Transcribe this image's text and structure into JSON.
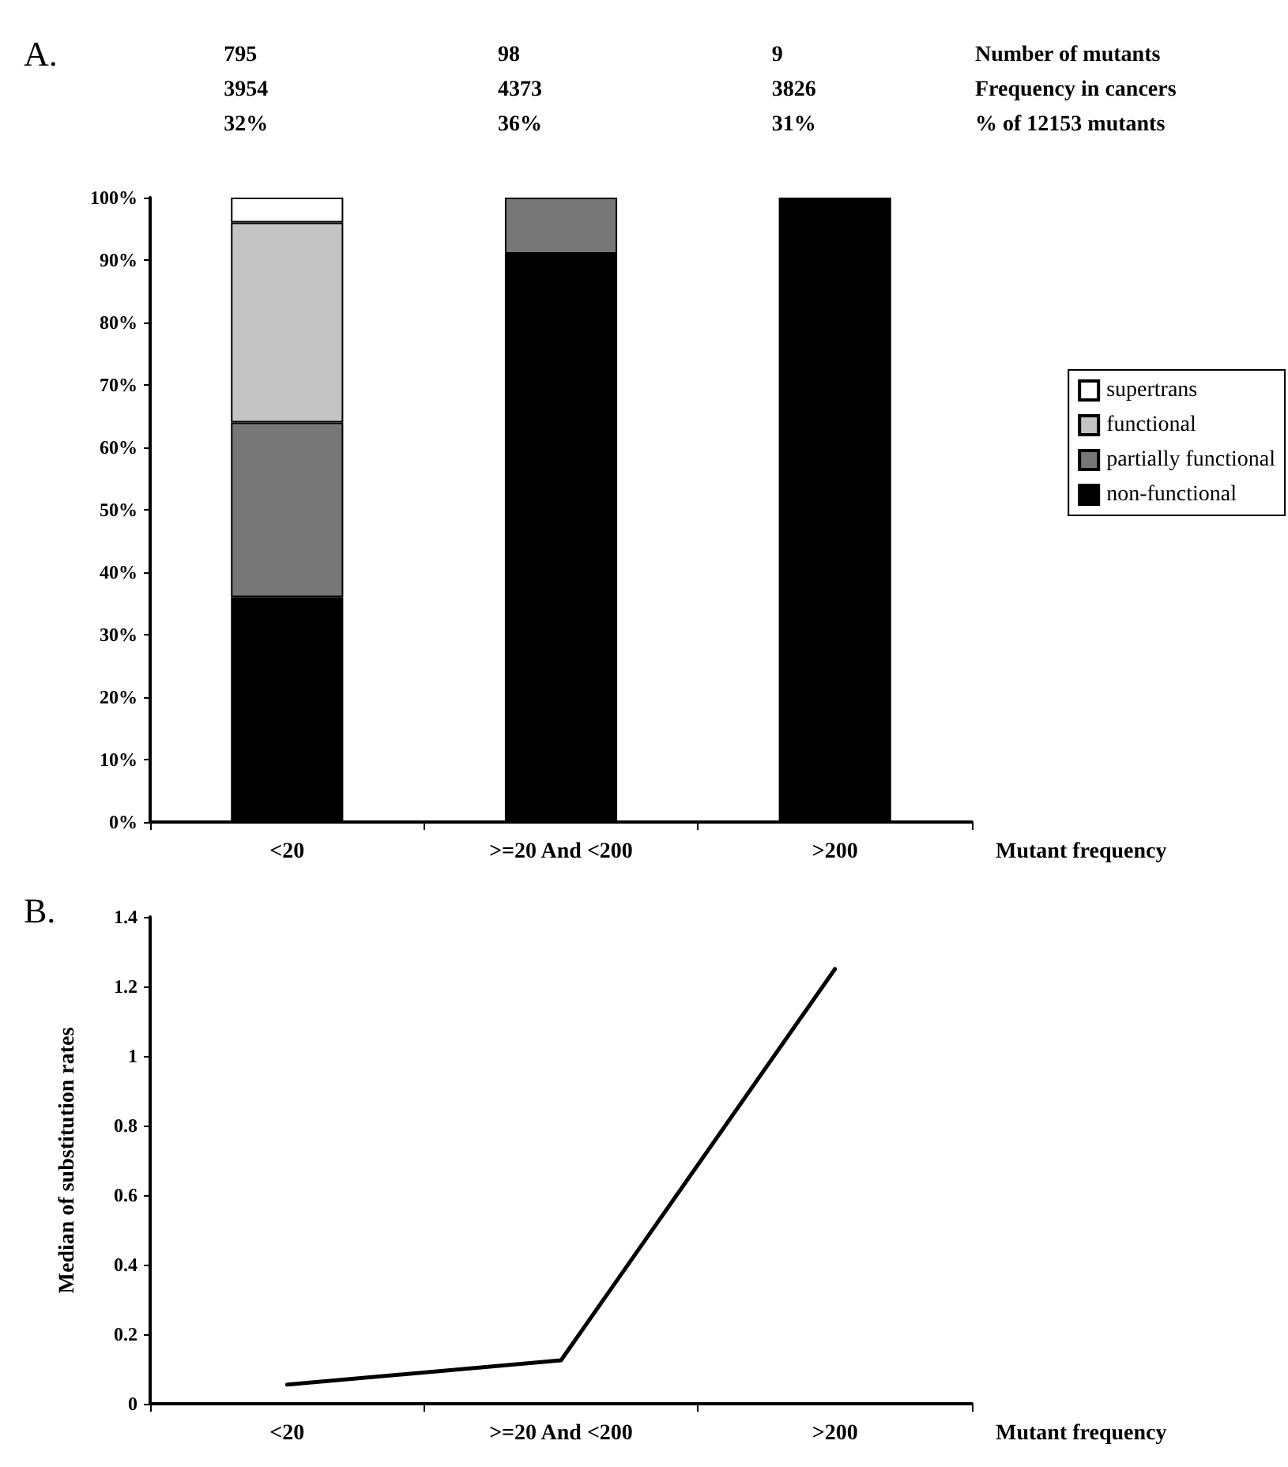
{
  "chart_data": [
    {
      "type": "bar",
      "title": "A.",
      "xlabel": "Mutant frequency",
      "categories": [
        "<20",
        ">=20 And <200",
        ">200"
      ],
      "stacked": true,
      "legend": "right",
      "series": [
        {
          "name": "non-functional",
          "color": "#000000",
          "values": [
            36,
            91,
            100
          ]
        },
        {
          "name": "partially functional",
          "color": "#777777",
          "values": [
            28,
            9,
            null
          ]
        },
        {
          "name": "functional",
          "color": "#c4c4c4",
          "values": [
            32,
            null,
            null
          ]
        },
        {
          "name": "supertrans",
          "color": "#ffffff",
          "values": [
            4,
            null,
            null
          ]
        }
      ],
      "ylim": [
        0,
        100
      ],
      "yticks": [
        {
          "value": 0,
          "label": "0%"
        },
        {
          "value": 10,
          "label": "10%"
        },
        {
          "value": 20,
          "label": "20%"
        },
        {
          "value": 30,
          "label": "30%"
        },
        {
          "value": 40,
          "label": "40%"
        },
        {
          "value": 50,
          "label": "50%"
        },
        {
          "value": 60,
          "label": "60%"
        },
        {
          "value": 70,
          "label": "70%"
        },
        {
          "value": 80,
          "label": "80%"
        },
        {
          "value": 90,
          "label": "90%"
        },
        {
          "value": 100,
          "label": "100%"
        }
      ],
      "annotations": [
        "795",
        "98",
        "9",
        "Number of mutants",
        "3954",
        "4373",
        "3826",
        "Frequency in cancers",
        "32%",
        "36%",
        "31%",
        "% of 12153 mutants"
      ]
    },
    {
      "type": "line",
      "title": "B.",
      "xlabel": "Mutant frequency",
      "ylabel": "Median of substitution rates",
      "categories": [
        "<20",
        ">=20 And <200",
        ">200"
      ],
      "marker": "none",
      "line_style": "solid",
      "legend": false,
      "series": [
        {
          "color": "#000000",
          "values": [
            0.055,
            0.125,
            1.25
          ]
        }
      ],
      "ylim": [
        0,
        1.4
      ],
      "yticks": [
        0,
        0.2,
        0.4,
        0.6,
        0.8,
        1,
        1.2,
        1.4
      ]
    }
  ]
}
